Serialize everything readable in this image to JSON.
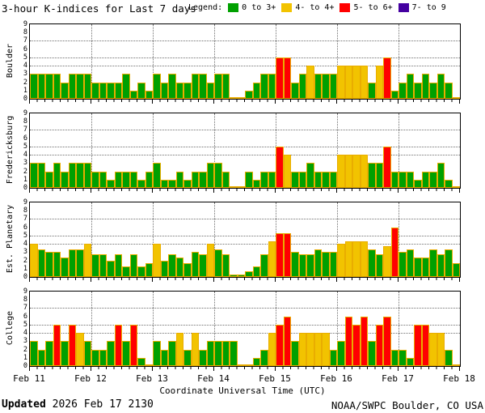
{
  "title": "3-hour K-indices for Last 7 days",
  "legend": {
    "label": "Legend:",
    "items": [
      {
        "label": "0 to 3+",
        "color": "#00A000"
      },
      {
        "label": "4- to 4+",
        "color": "#F2C300"
      },
      {
        "label": "5- to 6+",
        "color": "#FF0000"
      },
      {
        "label": "7- to 9",
        "color": "#4400A0"
      }
    ]
  },
  "x_axis_title": "Coordinate Universal Time (UTC)",
  "x_tick_labels": [
    "Feb 11",
    "Feb 12",
    "Feb 13",
    "Feb 14",
    "Feb 15",
    "Feb 16",
    "Feb 17",
    "Feb 18"
  ],
  "y_tick_labels": [
    0,
    1,
    2,
    3,
    4,
    5,
    6,
    7,
    8,
    9
  ],
  "footer": {
    "updated_label": "Updated",
    "updated_value": "2026 Feb 17 2130",
    "credit": "NOAA/SWPC Boulder, CO USA"
  },
  "chart_data": {
    "type": "bar",
    "ylabel_per_panel": true,
    "ylim": [
      0,
      9
    ],
    "grid_y": [
      4,
      5,
      7
    ],
    "days": 7,
    "bars_per_day": 8,
    "bar_interval_hours": 3,
    "color_rules": [
      {
        "max": 3.49,
        "color": "#00A000"
      },
      {
        "max": 4.49,
        "color": "#F2C300"
      },
      {
        "max": 6.49,
        "color": "#FF0000"
      },
      {
        "max": 9.0,
        "color": "#4400A0"
      }
    ],
    "bar_outline": "#E9AD00",
    "panels": [
      {
        "station": "Boulder",
        "values": [
          3,
          3,
          3,
          3,
          2,
          3,
          3,
          3,
          2,
          2,
          2,
          2,
          3,
          1,
          2,
          1,
          3,
          2,
          3,
          2,
          2,
          3,
          3,
          2,
          3,
          3,
          0,
          0,
          1,
          2,
          3,
          3,
          5,
          5,
          2,
          3,
          4,
          3,
          3,
          3,
          4,
          4,
          4,
          4,
          2,
          4,
          5,
          1,
          2,
          3,
          2,
          3,
          2,
          3,
          2,
          0
        ]
      },
      {
        "station": "Fredericksburg",
        "values": [
          3,
          3,
          2,
          3,
          2,
          3,
          3,
          3,
          2,
          2,
          1,
          2,
          2,
          2,
          1,
          2,
          3,
          1,
          1,
          2,
          1,
          2,
          2,
          3,
          3,
          2,
          0,
          0,
          2,
          1,
          2,
          2,
          5,
          4,
          2,
          2,
          3,
          2,
          2,
          2,
          4,
          4,
          4,
          4,
          3,
          3,
          5,
          2,
          2,
          2,
          1,
          2,
          2,
          3,
          1,
          0
        ]
      },
      {
        "station": "Est. Planetary",
        "values": [
          4,
          3.3,
          3,
          3,
          2.3,
          3.3,
          3.3,
          4,
          2.7,
          2.7,
          2,
          2.7,
          1.3,
          2.7,
          1.3,
          1.7,
          4,
          2,
          2.7,
          2.3,
          1.7,
          3,
          2.7,
          4,
          3.3,
          2.7,
          0.3,
          0.3,
          0.7,
          1.3,
          2.7,
          4.3,
          5.3,
          5.3,
          3,
          2.7,
          2.7,
          3.3,
          3,
          3,
          4,
          4.3,
          4.3,
          4.3,
          3.3,
          2.7,
          3.7,
          6,
          3,
          3.3,
          2.3,
          2.3,
          3.3,
          2.7,
          3.3,
          1.7
        ]
      },
      {
        "station": "College",
        "values": [
          3,
          2,
          3,
          5,
          3,
          5,
          4,
          3,
          2,
          2,
          3,
          5,
          3,
          5,
          1,
          0,
          3,
          2,
          3,
          4,
          2,
          4,
          2,
          3,
          3,
          3,
          3,
          0,
          0,
          1,
          2,
          4,
          5,
          6,
          3,
          4,
          4,
          4,
          4,
          2,
          3,
          6,
          5,
          6,
          3,
          5,
          6,
          2,
          2,
          1,
          5,
          5,
          4,
          4,
          2,
          0
        ]
      }
    ]
  }
}
